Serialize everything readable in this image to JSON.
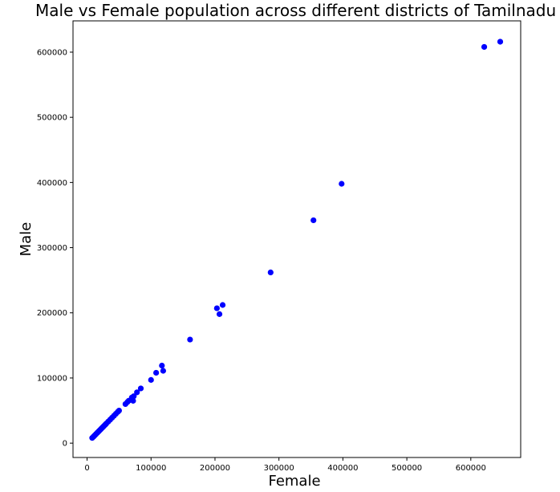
{
  "chart_data": {
    "type": "scatter",
    "title": "Male vs Female population across different districts of Tamilnadu",
    "xlabel": "Female",
    "ylabel": "Male",
    "xlim": [
      -22000,
      678000
    ],
    "ylim": [
      -22000,
      648000
    ],
    "x_ticks": [
      0,
      100000,
      200000,
      300000,
      400000,
      500000,
      600000
    ],
    "y_ticks": [
      0,
      100000,
      200000,
      300000,
      400000,
      500000,
      600000
    ],
    "x_tick_labels": [
      "0",
      "100000",
      "200000",
      "300000",
      "400000",
      "500000",
      "600000"
    ],
    "y_tick_labels": [
      "0",
      "100000",
      "200000",
      "300000",
      "400000",
      "500000",
      "600000"
    ],
    "grid": false,
    "marker_color": "#0000ff",
    "series": [
      {
        "x": [
          8000,
          10000,
          12000,
          14000,
          16000,
          18000,
          20000,
          22000,
          24000,
          26000,
          28000,
          30000,
          33000,
          36000,
          39000,
          42000,
          45000,
          48000,
          50000,
          60000,
          63000,
          65000,
          70000,
          72000,
          73000,
          78000,
          84000,
          100000,
          108000,
          117000,
          119000,
          161000,
          203000,
          207000,
          212000,
          287000,
          354000,
          398000,
          621000,
          646000
        ],
        "y": [
          8000,
          10000,
          12000,
          14000,
          16000,
          18000,
          20000,
          22000,
          24000,
          26000,
          28000,
          30000,
          33000,
          36000,
          39000,
          42000,
          45000,
          48000,
          50000,
          60000,
          63000,
          65000,
          70000,
          65000,
          72000,
          78000,
          84000,
          97000,
          108000,
          119000,
          111000,
          159000,
          207000,
          198000,
          212000,
          262000,
          342000,
          398000,
          608000,
          616000
        ]
      }
    ]
  }
}
